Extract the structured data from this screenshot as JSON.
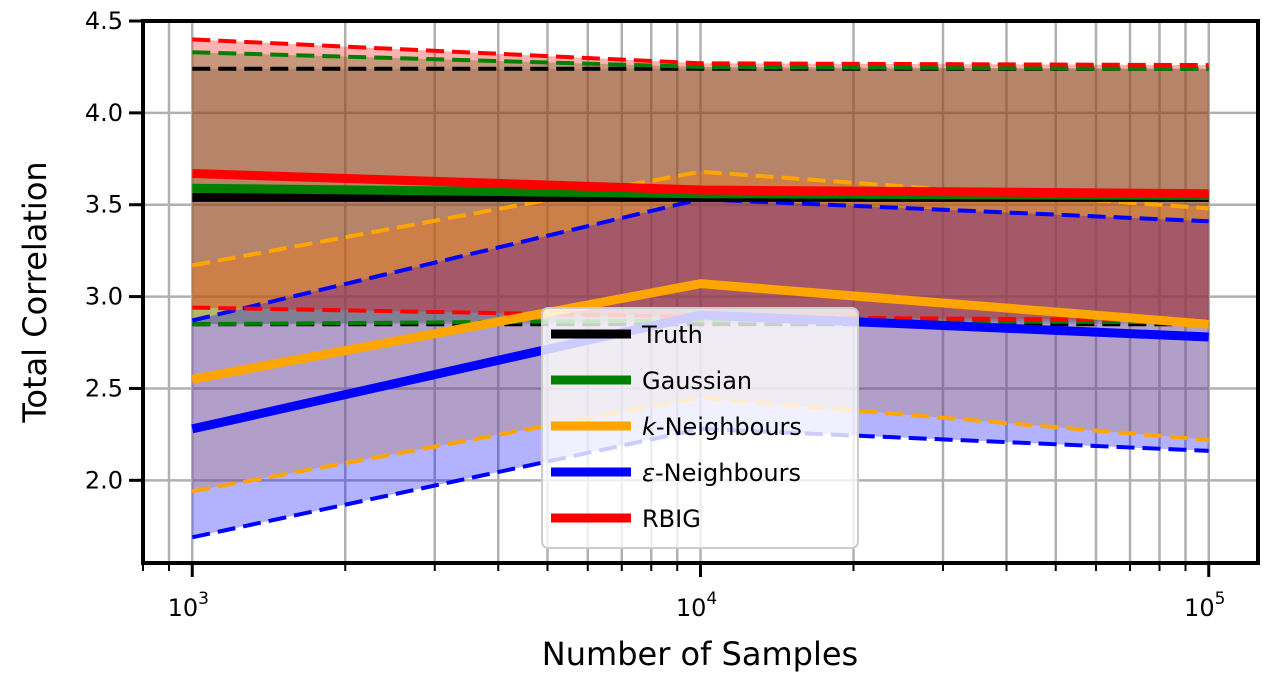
{
  "chart_data": {
    "type": "line",
    "xlabel": "Number of Samples",
    "ylabel": "Total Correlation",
    "xscale": "log",
    "xlim": [
      800,
      125000
    ],
    "ylim": [
      1.55,
      4.5
    ],
    "x": [
      1000,
      10000,
      100000
    ],
    "yticks": [
      2.0,
      2.5,
      3.0,
      3.5,
      4.0,
      4.5
    ],
    "ytick_labels": [
      "2.0",
      "2.5",
      "3.0",
      "3.5",
      "4.0",
      "4.5"
    ],
    "xticks": [
      {
        "base": "10",
        "exp": "3",
        "value": 1000
      },
      {
        "base": "10",
        "exp": "4",
        "value": 10000
      },
      {
        "base": "10",
        "exp": "5",
        "value": 100000
      }
    ],
    "grid": true,
    "legend_position": "bottom-center",
    "series": [
      {
        "name": "Truth",
        "color": "#000000",
        "fill": "#808080",
        "mean": [
          3.54,
          3.54,
          3.54
        ],
        "upper": [
          4.24,
          4.24,
          4.24
        ],
        "lower": [
          2.85,
          2.85,
          2.85
        ]
      },
      {
        "name": "Gaussian",
        "color": "#008000",
        "fill": "#008000",
        "mean": [
          3.59,
          3.56,
          3.55
        ],
        "upper": [
          4.33,
          4.25,
          4.24
        ],
        "lower": [
          2.85,
          2.87,
          2.86
        ]
      },
      {
        "name": "k-Neighbours",
        "name_italic": "k",
        "name_rest": "-Neighbours",
        "color": "#ffa500",
        "fill": "#ffa500",
        "mean": [
          2.55,
          3.07,
          2.85
        ],
        "upper": [
          3.17,
          3.68,
          3.48
        ],
        "lower": [
          1.94,
          2.45,
          2.22
        ]
      },
      {
        "name": "ε-Neighbours",
        "name_italic": "ε",
        "name_rest": "-Neighbours",
        "color": "#0000ff",
        "fill": "#0000ff",
        "mean": [
          2.28,
          2.9,
          2.78
        ],
        "upper": [
          2.87,
          3.53,
          3.41
        ],
        "lower": [
          1.69,
          2.28,
          2.16
        ]
      },
      {
        "name": "RBIG",
        "color": "#ff0000",
        "fill": "#ff0000",
        "mean": [
          3.67,
          3.58,
          3.56
        ],
        "upper": [
          4.4,
          4.27,
          4.26
        ],
        "lower": [
          2.94,
          2.89,
          2.87
        ]
      }
    ]
  }
}
